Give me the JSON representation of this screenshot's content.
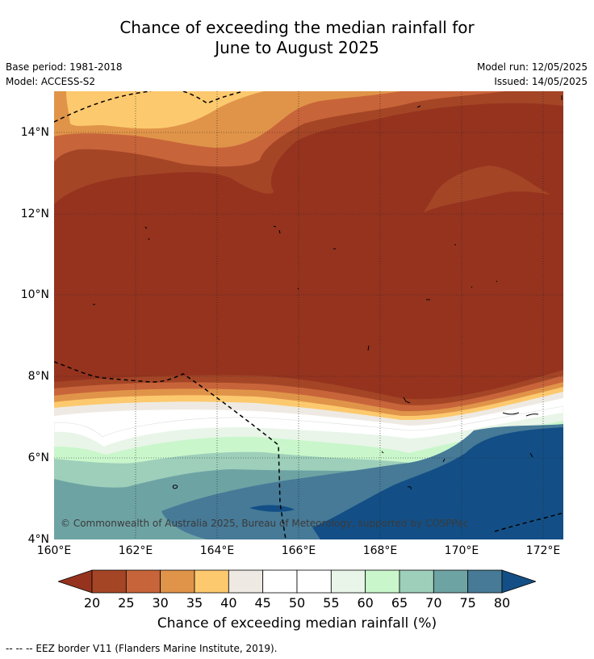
{
  "title_line1": "Chance of exceeding the median rainfall for",
  "title_line2": "June to August 2025",
  "meta": {
    "base_period": "Base period: 1981-2018",
    "model": "Model: ACCESS-S2",
    "model_run": "Model run: 12/05/2025",
    "issued": "Issued: 14/05/2025"
  },
  "map": {
    "lon_range": [
      160,
      172.5
    ],
    "lat_range": [
      4,
      15
    ],
    "y_ticks": [
      "4°N",
      "6°N",
      "8°N",
      "10°N",
      "12°N",
      "14°N"
    ],
    "x_ticks": [
      "160°E",
      "162°E",
      "164°E",
      "166°E",
      "168°E",
      "170°E",
      "172°E"
    ],
    "copyright": "© Commonwealth of Australia 2025, Bureau of Meteorology, supported by COSPPac"
  },
  "legend": {
    "tick_labels": [
      "20",
      "25",
      "30",
      "35",
      "40",
      "45",
      "50",
      "55",
      "60",
      "65",
      "70",
      "75",
      "80"
    ],
    "colors": [
      "#a44526",
      "#c8643a",
      "#e09449",
      "#fdc96e",
      "#eeeae3",
      "#ffffff",
      "#ffffff",
      "#e8f5e8",
      "#c9f6cb",
      "#9dcfba",
      "#6ea3a4",
      "#467a97"
    ],
    "under_color": "#95331f",
    "over_color": "#134f86",
    "label": "Chance of exceeding median rainfall (%)"
  },
  "eez_note": "--  --  -- EEZ border V11 (Flanders Marine Institute, 2019)."
}
